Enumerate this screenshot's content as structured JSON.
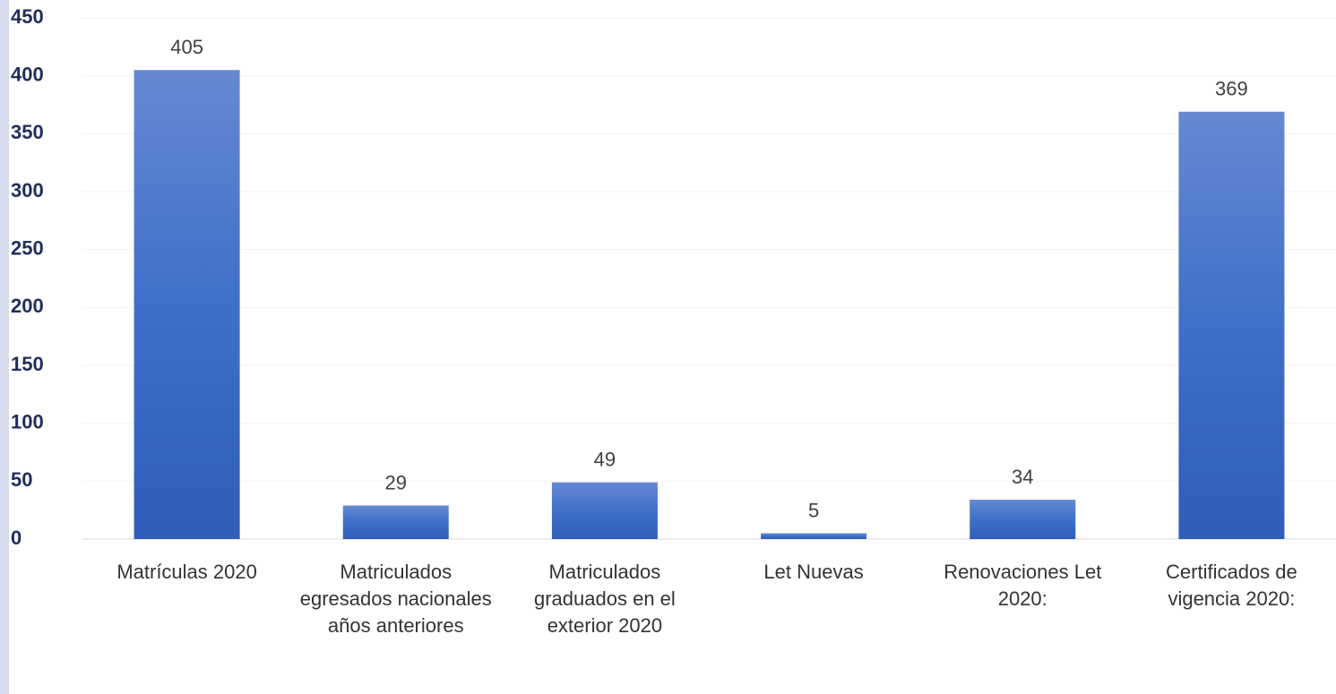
{
  "chart_data": {
    "type": "bar",
    "categories": [
      "Matrículas 2020",
      "Matriculados egresados nacionales años anteriores",
      "Matriculados graduados en el exterior 2020",
      "Let Nuevas",
      "Renovaciones Let 2020:",
      "Certificados de vigencia 2020:"
    ],
    "values": [
      405,
      29,
      49,
      5,
      34,
      369
    ],
    "color": "#3f6fc9",
    "ylim": [
      0,
      450
    ],
    "yticks": [
      0,
      50,
      100,
      150,
      200,
      250,
      300,
      350,
      400,
      450
    ],
    "grid": true
  }
}
